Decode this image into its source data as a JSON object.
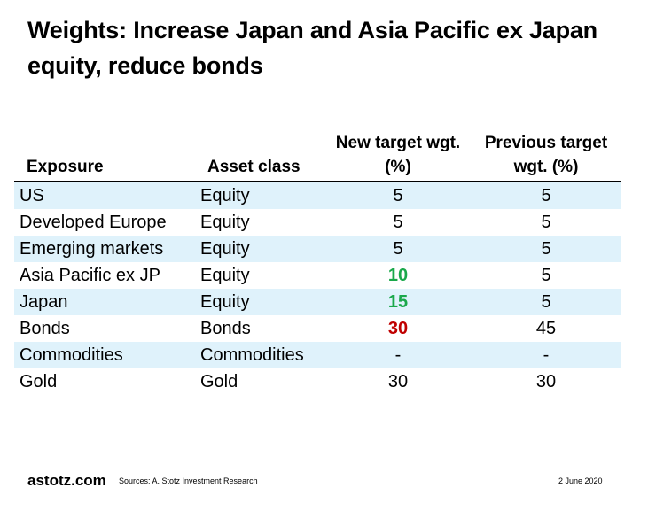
{
  "title": "Weights: Increase Japan and Asia Pacific ex Japan equity, reduce bonds",
  "headers": {
    "exposure": "Exposure",
    "asset_class": "Asset class",
    "new_target": "New target wgt. (%)",
    "previous_target": "Previous target wgt. (%)"
  },
  "rows": [
    {
      "exposure": "US",
      "asset_class": "Equity",
      "new": "5",
      "previous": "5"
    },
    {
      "exposure": "Developed Europe",
      "asset_class": "Equity",
      "new": "5",
      "previous": "5"
    },
    {
      "exposure": "Emerging markets",
      "asset_class": "Equity",
      "new": "5",
      "previous": "5"
    },
    {
      "exposure": "Asia Pacific ex JP",
      "asset_class": "Equity",
      "new": "10",
      "previous": "5"
    },
    {
      "exposure": "Japan",
      "asset_class": "Equity",
      "new": "15",
      "previous": "5"
    },
    {
      "exposure": "Bonds",
      "asset_class": "Bonds",
      "new": "30",
      "previous": "45"
    },
    {
      "exposure": "Commodities",
      "asset_class": "Commodities",
      "new": "-",
      "previous": "-"
    },
    {
      "exposure": "Gold",
      "asset_class": "Gold",
      "new": "30",
      "previous": "30"
    }
  ],
  "colors": {
    "increase": "#1aa84a",
    "decrease": "#c00000",
    "row_shade": "#dff2fb"
  },
  "footer": {
    "logo": "astotz.com",
    "sources": "Sources: A. Stotz Investment Research",
    "date": "2 June 2020"
  }
}
